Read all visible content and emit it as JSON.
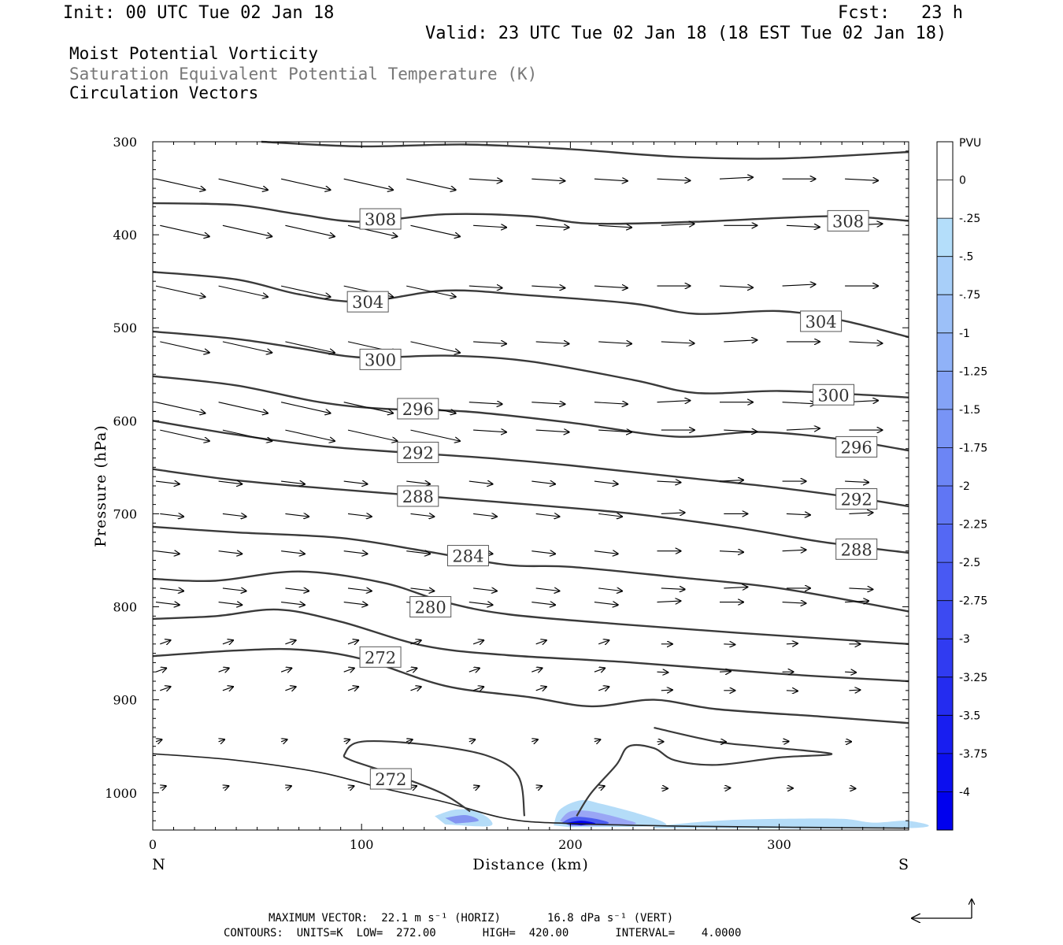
{
  "header": {
    "init": "Init: 00 UTC Tue 02 Jan 18",
    "fcst": "Fcst:   23 h",
    "valid": "Valid: 23 UTC Tue 02 Jan 18 (18 EST Tue 02 Jan 18)"
  },
  "fields": {
    "line1": "Moist Potential Vorticity",
    "line2": "Saturation Equivalent Potential Temperature (K)",
    "line3": "Circulation Vectors"
  },
  "footer": {
    "line1": "MAXIMUM VECTOR:  22.1 m s⁻¹ (HORIZ)       16.8 dPa s⁻¹ (VERT)",
    "line2": "CONTOURS:  UNITS=K  LOW=  272.00       HIGH=  420.00       INTERVAL=    4.0000"
  },
  "colors": {
    "contour": "#3a3a3a",
    "shade_light": "#b4dcf8",
    "shade_dark": "#0000ee"
  },
  "chart_data": {
    "type": "cross-section",
    "xlabel": "Distance (km)",
    "ylabel": "Pressure (hPa)",
    "x_ticks": [
      0,
      100,
      200,
      300
    ],
    "xlim": [
      0,
      362
    ],
    "y_ticks": [
      300,
      400,
      500,
      600,
      700,
      800,
      900,
      1000
    ],
    "ylim": [
      1040,
      300
    ],
    "x_end_labels": {
      "left": "N",
      "right": "S"
    },
    "colorbar": {
      "unit": "PVU",
      "labels": [
        "0",
        "-.25",
        "-.5",
        "-.75",
        "-1",
        "-1.25",
        "-1.5",
        "-1.75",
        "-2",
        "-2.25",
        "-2.5",
        "-2.75",
        "-3",
        "-3.25",
        "-3.5",
        "-3.75",
        "-4"
      ]
    },
    "contours": [
      {
        "value": 312,
        "points": [
          [
            52,
            300
          ],
          [
            100,
            305
          ],
          [
            150,
            303
          ],
          [
            200,
            308
          ],
          [
            250,
            316
          ],
          [
            300,
            318
          ],
          [
            362,
            311
          ]
        ]
      },
      {
        "value": 308,
        "label": "308",
        "label_pos": [
          [
            109,
            383
          ],
          [
            333,
            385
          ]
        ],
        "points": [
          [
            0,
            366
          ],
          [
            40,
            368
          ],
          [
            70,
            378
          ],
          [
            100,
            386
          ],
          [
            140,
            378
          ],
          [
            180,
            380
          ],
          [
            210,
            388
          ],
          [
            260,
            386
          ],
          [
            300,
            382
          ],
          [
            330,
            380
          ],
          [
            362,
            385
          ]
        ]
      },
      {
        "value": 304,
        "label": "304",
        "label_pos": [
          [
            103,
            472
          ],
          [
            320,
            493
          ]
        ],
        "points": [
          [
            0,
            440
          ],
          [
            40,
            448
          ],
          [
            70,
            464
          ],
          [
            100,
            472
          ],
          [
            140,
            460
          ],
          [
            180,
            465
          ],
          [
            230,
            474
          ],
          [
            260,
            485
          ],
          [
            300,
            482
          ],
          [
            330,
            492
          ],
          [
            362,
            510
          ]
        ]
      },
      {
        "value": 300,
        "label": "300",
        "label_pos": [
          [
            109,
            534
          ],
          [
            326,
            572
          ]
        ],
        "points": [
          [
            0,
            504
          ],
          [
            40,
            512
          ],
          [
            70,
            522
          ],
          [
            100,
            532
          ],
          [
            140,
            530
          ],
          [
            180,
            536
          ],
          [
            230,
            556
          ],
          [
            260,
            570
          ],
          [
            300,
            568
          ],
          [
            340,
            572
          ],
          [
            362,
            575
          ]
        ]
      },
      {
        "value": 296,
        "label": "296",
        "label_pos": [
          [
            127,
            587
          ],
          [
            337,
            628
          ]
        ],
        "points": [
          [
            0,
            552
          ],
          [
            40,
            562
          ],
          [
            80,
            580
          ],
          [
            110,
            587
          ],
          [
            150,
            590
          ],
          [
            200,
            602
          ],
          [
            250,
            617
          ],
          [
            290,
            612
          ],
          [
            330,
            620
          ],
          [
            362,
            632
          ]
        ]
      },
      {
        "value": 292,
        "label": "292",
        "label_pos": [
          [
            127,
            634
          ],
          [
            337,
            684
          ]
        ],
        "points": [
          [
            0,
            600
          ],
          [
            40,
            615
          ],
          [
            80,
            627
          ],
          [
            120,
            634
          ],
          [
            160,
            640
          ],
          [
            200,
            648
          ],
          [
            250,
            660
          ],
          [
            300,
            672
          ],
          [
            340,
            684
          ],
          [
            362,
            692
          ]
        ]
      },
      {
        "value": 288,
        "label": "288",
        "label_pos": [
          [
            127,
            681
          ],
          [
            337,
            738
          ]
        ],
        "points": [
          [
            0,
            652
          ],
          [
            40,
            664
          ],
          [
            90,
            674
          ],
          [
            130,
            681
          ],
          [
            180,
            690
          ],
          [
            230,
            700
          ],
          [
            280,
            715
          ],
          [
            320,
            730
          ],
          [
            362,
            742
          ]
        ]
      },
      {
        "value": 284,
        "label": "284",
        "label_pos": [
          [
            151,
            745
          ]
        ],
        "points": [
          [
            0,
            714
          ],
          [
            40,
            720
          ],
          [
            90,
            726
          ],
          [
            130,
            740
          ],
          [
            170,
            755
          ],
          [
            200,
            757
          ],
          [
            250,
            768
          ],
          [
            300,
            780
          ],
          [
            362,
            805
          ]
        ]
      },
      {
        "value": 280,
        "label": "280",
        "label_pos": [
          [
            133,
            800
          ]
        ],
        "points": [
          [
            0,
            770
          ],
          [
            30,
            772
          ],
          [
            70,
            762
          ],
          [
            110,
            774
          ],
          [
            140,
            795
          ],
          [
            170,
            808
          ],
          [
            220,
            818
          ],
          [
            280,
            828
          ],
          [
            362,
            840
          ]
        ]
      },
      {
        "value": 276,
        "points": [
          [
            0,
            813
          ],
          [
            30,
            810
          ],
          [
            60,
            803
          ],
          [
            90,
            816
          ],
          [
            130,
            842
          ],
          [
            170,
            852
          ],
          [
            230,
            860
          ],
          [
            300,
            872
          ],
          [
            362,
            880
          ]
        ]
      },
      {
        "value": 272,
        "label": "272",
        "label_pos": [
          [
            109,
            854
          ]
        ],
        "points": [
          [
            0,
            853
          ],
          [
            40,
            847
          ],
          [
            70,
            846
          ],
          [
            100,
            856
          ],
          [
            140,
            885
          ],
          [
            180,
            897
          ],
          [
            210,
            907
          ],
          [
            240,
            900
          ],
          [
            270,
            910
          ],
          [
            320,
            918
          ],
          [
            362,
            925
          ]
        ]
      }
    ],
    "low_level_272": {
      "label": "272",
      "label_pos": [
        114,
        985
      ]
    },
    "vectors": []
  }
}
